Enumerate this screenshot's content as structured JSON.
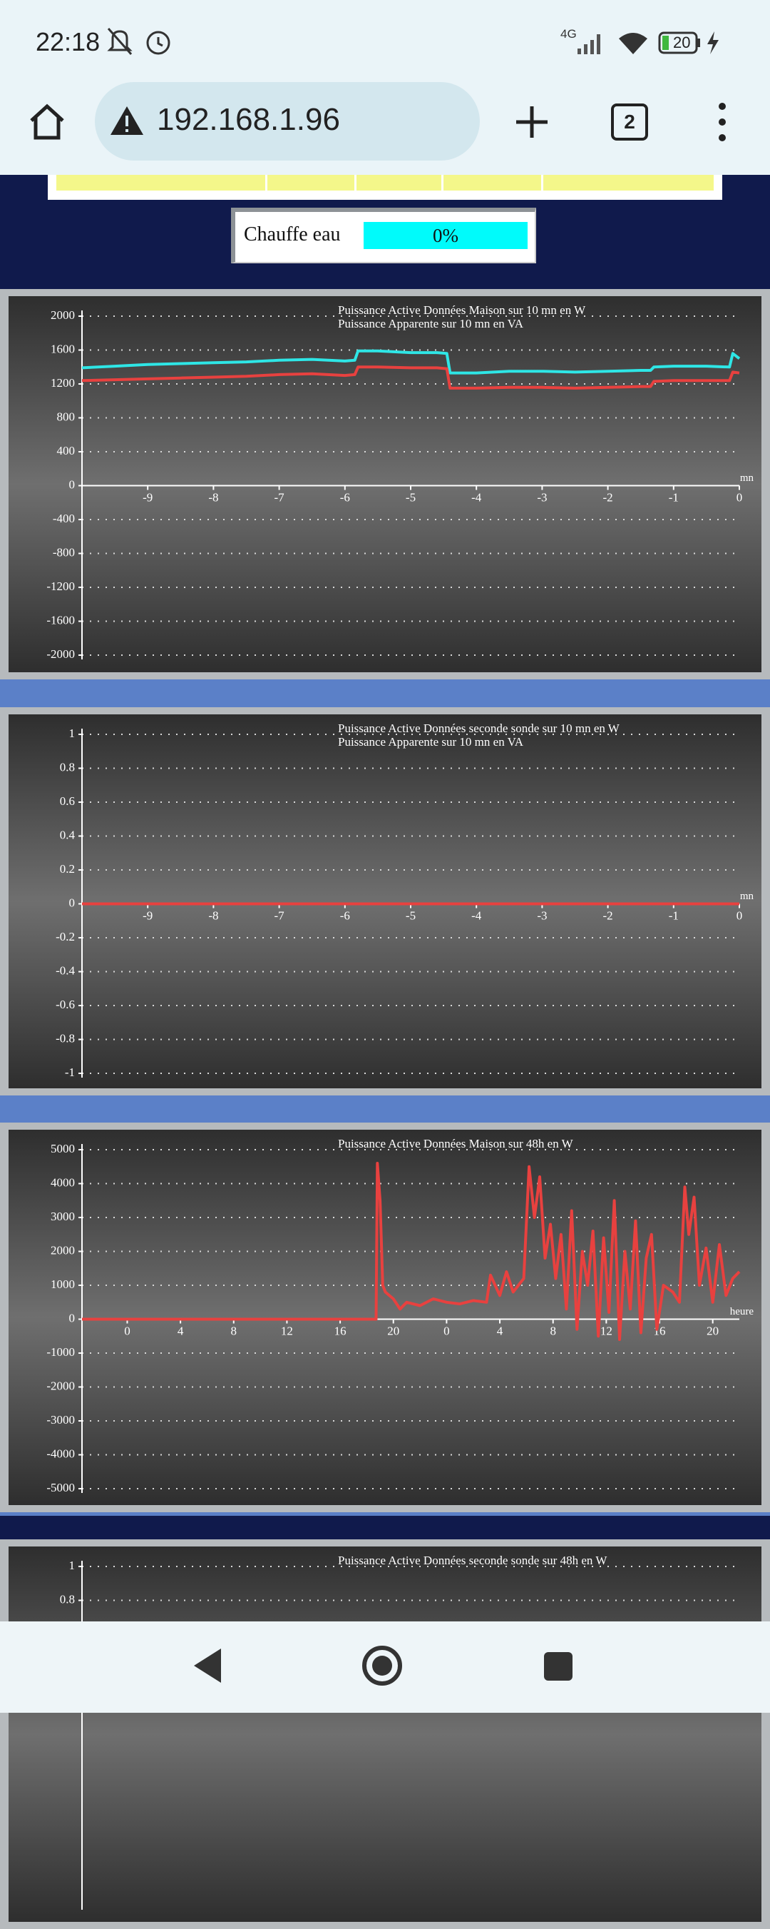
{
  "status_bar": {
    "time": "22:18",
    "network": "4G",
    "battery": "20"
  },
  "browser": {
    "url": "192.168.1.96",
    "tab_count": "2"
  },
  "chauffe_eau": {
    "label": "Chauffe eau",
    "value": "0%"
  },
  "chart_data": [
    {
      "type": "line",
      "grid": true,
      "xlabel": "mn",
      "x": [
        -10,
        -9.5,
        -9,
        -8.5,
        -8,
        -7.5,
        -7,
        -6.5,
        -6,
        -5.85,
        -5.8,
        -5.5,
        -5,
        -4.6,
        -4.45,
        -4.4,
        -4,
        -3.5,
        -3,
        -2.5,
        -2,
        -1.5,
        -1.35,
        -1.3,
        -1,
        -0.5,
        -0.15,
        -0.1,
        0
      ],
      "xlim": [
        -10,
        0
      ],
      "xticks": [
        -9,
        -8,
        -7,
        -6,
        -5,
        -4,
        -3,
        -2,
        -1,
        0
      ],
      "ylim": [
        -2000,
        2000
      ],
      "yticks": [
        2000,
        1600,
        1200,
        800,
        400,
        0,
        -400,
        -800,
        -1200,
        -1600,
        -2000
      ],
      "series": [
        {
          "name": "Puissance Active Données Maison sur 10 mn en W",
          "color": "#e8413f",
          "values": [
            1240,
            1250,
            1260,
            1270,
            1280,
            1290,
            1310,
            1320,
            1300,
            1310,
            1400,
            1400,
            1390,
            1390,
            1380,
            1150,
            1150,
            1160,
            1160,
            1150,
            1160,
            1170,
            1170,
            1230,
            1240,
            1240,
            1240,
            1340,
            1330
          ]
        },
        {
          "name": "Puissance Apparente sur 10 mn en VA",
          "color": "#2ee6e6",
          "values": [
            1390,
            1410,
            1430,
            1440,
            1450,
            1460,
            1480,
            1490,
            1470,
            1480,
            1590,
            1590,
            1570,
            1570,
            1560,
            1330,
            1330,
            1350,
            1350,
            1340,
            1350,
            1360,
            1360,
            1400,
            1410,
            1410,
            1400,
            1560,
            1500
          ]
        }
      ]
    },
    {
      "type": "line",
      "grid": true,
      "xlabel": "mn",
      "x": [
        -10,
        0
      ],
      "xlim": [
        -10,
        0
      ],
      "xticks": [
        -9,
        -8,
        -7,
        -6,
        -5,
        -4,
        -3,
        -2,
        -1,
        0
      ],
      "ylim": [
        -1,
        1
      ],
      "yticks": [
        1,
        0.8,
        0.6,
        0.4,
        0.2,
        0,
        -0.2,
        -0.4,
        -0.6,
        -0.8,
        -1
      ],
      "series": [
        {
          "name": "Puissance Active Données seconde sonde sur 10 mn en W",
          "color": "#e8413f",
          "values": [
            0,
            0
          ]
        },
        {
          "name": "Puissance Apparente sur 10 mn en VA",
          "color": "#2ee6e6",
          "values": [
            0,
            0
          ]
        }
      ]
    },
    {
      "type": "line",
      "grid": true,
      "xlabel": "heure",
      "x": [
        -3.4,
        18.7,
        18.8,
        19.0,
        19.2,
        19.4,
        20,
        20.5,
        21,
        22,
        23,
        24,
        25,
        26,
        27,
        27.3,
        28,
        28.5,
        29,
        29.8,
        30.2,
        30.6,
        31,
        31.4,
        31.8,
        32.2,
        32.6,
        33,
        33.4,
        33.8,
        34.2,
        34.6,
        35,
        35.4,
        35.8,
        36.2,
        36.6,
        37,
        37.4,
        37.8,
        38.2,
        38.6,
        39,
        39.4,
        39.8,
        40.3,
        41,
        41.5,
        41.9,
        42.2,
        42.6,
        43,
        43.5,
        44,
        44.5,
        45,
        45.5,
        46
      ],
      "xlim": [
        -3.4,
        46
      ],
      "xticks": [
        0,
        4,
        8,
        12,
        16,
        20,
        {
          "value": 24,
          "label": "0"
        },
        {
          "value": 28,
          "label": "4"
        },
        {
          "value": 32,
          "label": "8"
        },
        {
          "value": 36,
          "label": "12"
        },
        {
          "value": 40,
          "label": "16"
        },
        {
          "value": 44,
          "label": "20"
        }
      ],
      "ylim": [
        -5000,
        5000
      ],
      "yticks": [
        5000,
        4000,
        3000,
        2000,
        1000,
        0,
        -1000,
        -2000,
        -3000,
        -4000,
        -5000
      ],
      "series": [
        {
          "name": "Puissance Active Données Maison sur 48h en W",
          "color": "#e8413f",
          "values": [
            0,
            0,
            4600,
            3500,
            1000,
            800,
            600,
            300,
            500,
            400,
            600,
            500,
            450,
            550,
            500,
            1300,
            700,
            1400,
            800,
            1200,
            4500,
            3000,
            4200,
            1800,
            2800,
            1200,
            2500,
            300,
            3200,
            -300,
            2000,
            1000,
            2600,
            -500,
            2400,
            200,
            3500,
            -600,
            2000,
            300,
            2900,
            -400,
            1800,
            2500,
            -300,
            1000,
            800,
            500,
            3900,
            2500,
            3600,
            1000,
            2100,
            500,
            2200,
            700,
            1200,
            1400
          ]
        }
      ]
    },
    {
      "type": "line",
      "grid": true,
      "ylim": [
        -1,
        1
      ],
      "yticks": [
        1,
        0.8
      ],
      "series": [
        {
          "name": "Puissance Active Données seconde sonde sur 48h en W",
          "color": "#e8413f"
        }
      ]
    }
  ]
}
